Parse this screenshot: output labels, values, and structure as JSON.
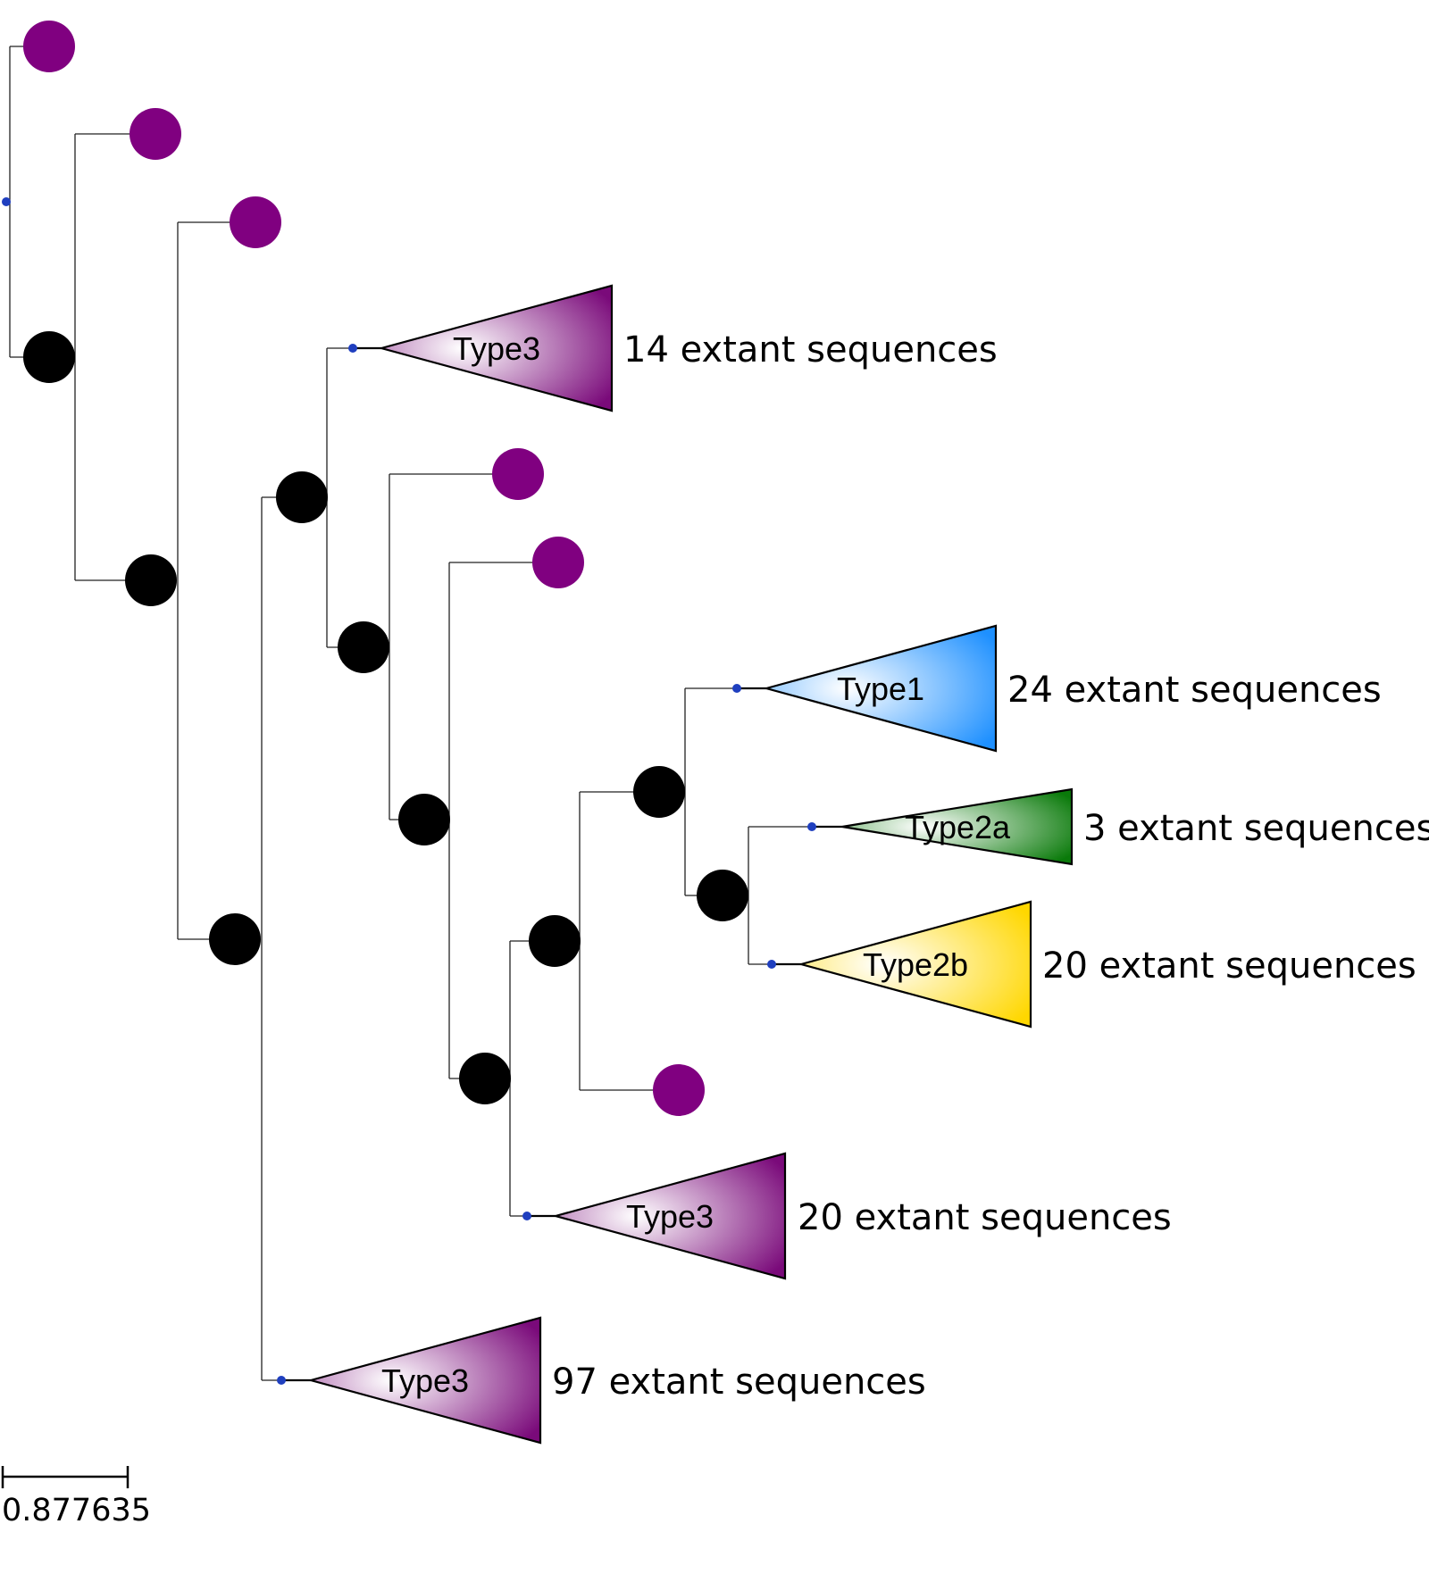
{
  "tree": {
    "colors": {
      "branch": "#222222",
      "ancestral_node": "#000000",
      "leaf_node": "#800080",
      "root_dot": "#1f3fbf",
      "Type1": "#1e90ff",
      "Type2a": "#0a7a0a",
      "Type2b": "#ffd700",
      "Type3": "#7a0a7a"
    },
    "clades": [
      {
        "id": "c1",
        "label": "Type3",
        "count_label": "14 extant sequences",
        "color_key": "Type3"
      },
      {
        "id": "c2",
        "label": "Type1",
        "count_label": "24 extant sequences",
        "color_key": "Type1"
      },
      {
        "id": "c3",
        "label": "Type2a",
        "count_label": "3 extant sequences",
        "color_key": "Type2a"
      },
      {
        "id": "c4",
        "label": "Type2b",
        "count_label": "20 extant sequences",
        "color_key": "Type2b"
      },
      {
        "id": "c5",
        "label": "Type3",
        "count_label": "20 extant sequences",
        "color_key": "Type3"
      },
      {
        "id": "c6",
        "label": "Type3",
        "count_label": "97 extant sequences",
        "color_key": "Type3"
      }
    ],
    "scale_bar": {
      "label": "0.877635"
    }
  }
}
